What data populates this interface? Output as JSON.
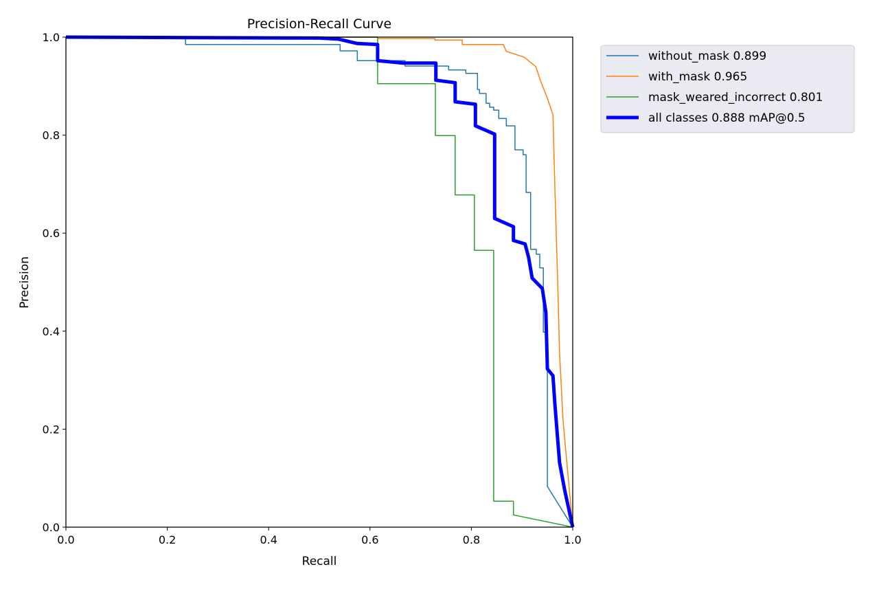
{
  "chart_data": {
    "type": "line",
    "title": "Precision-Recall Curve",
    "xlabel": "Recall",
    "ylabel": "Precision",
    "xlim": [
      0,
      1
    ],
    "ylim": [
      0,
      1
    ],
    "xticks": [
      "0.0",
      "0.2",
      "0.4",
      "0.6",
      "0.8",
      "1.0"
    ],
    "yticks": [
      "0.0",
      "0.2",
      "0.4",
      "0.6",
      "0.8",
      "1.0"
    ],
    "grid": false,
    "legend_position": "outside-top-right",
    "series": [
      {
        "name": "without_mask 0.899",
        "color": "#1f77b4",
        "width": "thin",
        "points": [
          [
            0,
            1
          ],
          [
            0.236,
            1
          ],
          [
            0.236,
            0.985
          ],
          [
            0.541,
            0.985
          ],
          [
            0.541,
            0.972
          ],
          [
            0.575,
            0.972
          ],
          [
            0.575,
            0.952
          ],
          [
            0.669,
            0.952
          ],
          [
            0.669,
            0.941
          ],
          [
            0.755,
            0.941
          ],
          [
            0.755,
            0.933
          ],
          [
            0.789,
            0.933
          ],
          [
            0.789,
            0.926
          ],
          [
            0.812,
            0.926
          ],
          [
            0.812,
            0.893
          ],
          [
            0.816,
            0.893
          ],
          [
            0.816,
            0.885
          ],
          [
            0.829,
            0.885
          ],
          [
            0.829,
            0.865
          ],
          [
            0.836,
            0.865
          ],
          [
            0.836,
            0.857
          ],
          [
            0.844,
            0.857
          ],
          [
            0.844,
            0.851
          ],
          [
            0.854,
            0.851
          ],
          [
            0.854,
            0.834
          ],
          [
            0.869,
            0.834
          ],
          [
            0.869,
            0.819
          ],
          [
            0.886,
            0.819
          ],
          [
            0.886,
            0.77
          ],
          [
            0.902,
            0.77
          ],
          [
            0.902,
            0.76
          ],
          [
            0.908,
            0.76
          ],
          [
            0.908,
            0.683
          ],
          [
            0.917,
            0.683
          ],
          [
            0.917,
            0.567
          ],
          [
            0.928,
            0.567
          ],
          [
            0.928,
            0.557
          ],
          [
            0.935,
            0.557
          ],
          [
            0.935,
            0.529
          ],
          [
            0.942,
            0.529
          ],
          [
            0.942,
            0.398
          ],
          [
            0.95,
            0.398
          ],
          [
            0.95,
            0.083
          ],
          [
            1,
            0
          ]
        ]
      },
      {
        "name": "with_mask 0.965",
        "color": "#ff7f0e",
        "width": "thin",
        "points": [
          [
            0,
            1
          ],
          [
            0.615,
            1
          ],
          [
            0.615,
            0.997
          ],
          [
            0.728,
            0.997
          ],
          [
            0.728,
            0.994
          ],
          [
            0.782,
            0.994
          ],
          [
            0.782,
            0.985
          ],
          [
            0.863,
            0.985
          ],
          [
            0.869,
            0.971
          ],
          [
            0.904,
            0.959
          ],
          [
            0.927,
            0.94
          ],
          [
            0.936,
            0.912
          ],
          [
            0.95,
            0.875
          ],
          [
            0.961,
            0.842
          ],
          [
            0.965,
            0.683
          ],
          [
            0.97,
            0.511
          ],
          [
            0.974,
            0.356
          ],
          [
            0.981,
            0.216
          ],
          [
            1,
            0
          ]
        ]
      },
      {
        "name": "mask_weared_incorrect 0.801",
        "color": "#2ca02c",
        "width": "thin",
        "points": [
          [
            0,
            1
          ],
          [
            0.615,
            1
          ],
          [
            0.615,
            0.905
          ],
          [
            0.729,
            0.905
          ],
          [
            0.729,
            0.799
          ],
          [
            0.768,
            0.799
          ],
          [
            0.768,
            0.678
          ],
          [
            0.806,
            0.678
          ],
          [
            0.806,
            0.565
          ],
          [
            0.844,
            0.565
          ],
          [
            0.844,
            0.053
          ],
          [
            0.883,
            0.053
          ],
          [
            0.883,
            0.025
          ],
          [
            1,
            0
          ]
        ]
      },
      {
        "name": "all classes 0.888 mAP@0.5",
        "color": "#0000ff",
        "width": "thick",
        "points": [
          [
            0,
            1
          ],
          [
            0.5,
            0.998
          ],
          [
            0.538,
            0.996
          ],
          [
            0.575,
            0.987
          ],
          [
            0.615,
            0.985
          ],
          [
            0.615,
            0.952
          ],
          [
            0.665,
            0.947
          ],
          [
            0.73,
            0.947
          ],
          [
            0.73,
            0.912
          ],
          [
            0.768,
            0.907
          ],
          [
            0.768,
            0.868
          ],
          [
            0.808,
            0.863
          ],
          [
            0.808,
            0.819
          ],
          [
            0.846,
            0.802
          ],
          [
            0.846,
            0.63
          ],
          [
            0.883,
            0.613
          ],
          [
            0.883,
            0.585
          ],
          [
            0.906,
            0.578
          ],
          [
            0.913,
            0.55
          ],
          [
            0.92,
            0.508
          ],
          [
            0.94,
            0.487
          ],
          [
            0.947,
            0.438
          ],
          [
            0.95,
            0.323
          ],
          [
            0.961,
            0.309
          ],
          [
            0.965,
            0.248
          ],
          [
            0.974,
            0.132
          ],
          [
            0.984,
            0.076
          ],
          [
            1,
            0
          ]
        ]
      }
    ]
  }
}
